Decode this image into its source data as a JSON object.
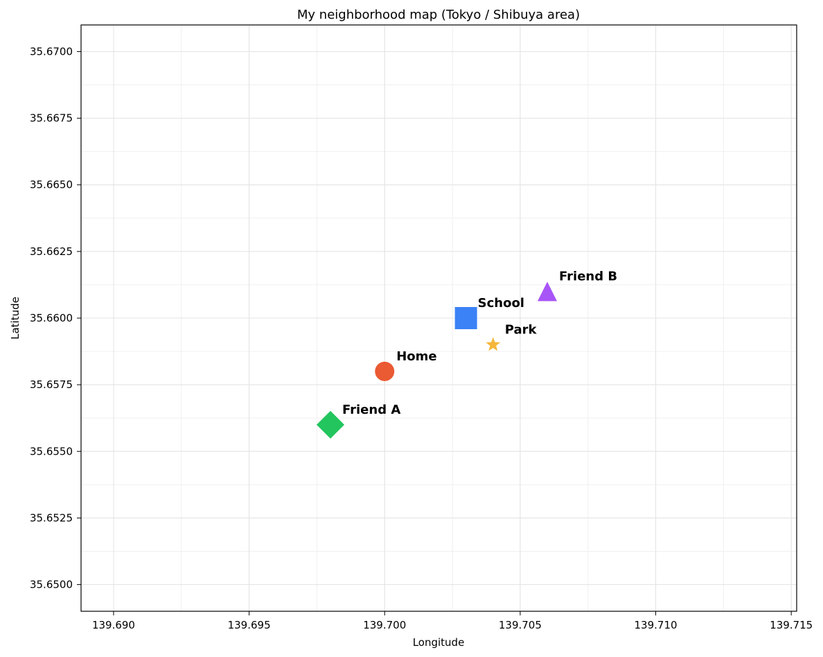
{
  "chart_data": {
    "type": "scatter",
    "title": "My neighborhood map (Tokyo / Shibuya area)",
    "xlabel": "Longitude",
    "ylabel": "Latitude",
    "xlim": [
      139.6888,
      139.7152
    ],
    "ylim": [
      35.649,
      35.671
    ],
    "x_ticks": [
      139.69,
      139.695,
      139.7,
      139.705,
      139.71,
      139.715
    ],
    "x_tick_labels": [
      "139.690",
      "139.695",
      "139.700",
      "139.705",
      "139.710",
      "139.715"
    ],
    "y_ticks": [
      35.65,
      35.6525,
      35.655,
      35.6575,
      35.66,
      35.6625,
      35.665,
      35.6675,
      35.67
    ],
    "y_tick_labels": [
      "35.6500",
      "35.6525",
      "35.6550",
      "35.6575",
      "35.6600",
      "35.6625",
      "35.6650",
      "35.6675",
      "35.6700"
    ],
    "grid": true,
    "points": [
      {
        "label": "Home",
        "x": 139.7,
        "y": 35.658,
        "marker": "circle",
        "color": "#ea5a33"
      },
      {
        "label": "School",
        "x": 139.703,
        "y": 35.66,
        "marker": "square",
        "color": "#3b82f6"
      },
      {
        "label": "Park",
        "x": 139.704,
        "y": 35.659,
        "marker": "star",
        "color": "#f4b73a"
      },
      {
        "label": "Friend A",
        "x": 139.698,
        "y": 35.656,
        "marker": "diamond",
        "color": "#22c55e"
      },
      {
        "label": "Friend B",
        "x": 139.706,
        "y": 35.661,
        "marker": "triangle",
        "color": "#a855f7"
      }
    ]
  }
}
